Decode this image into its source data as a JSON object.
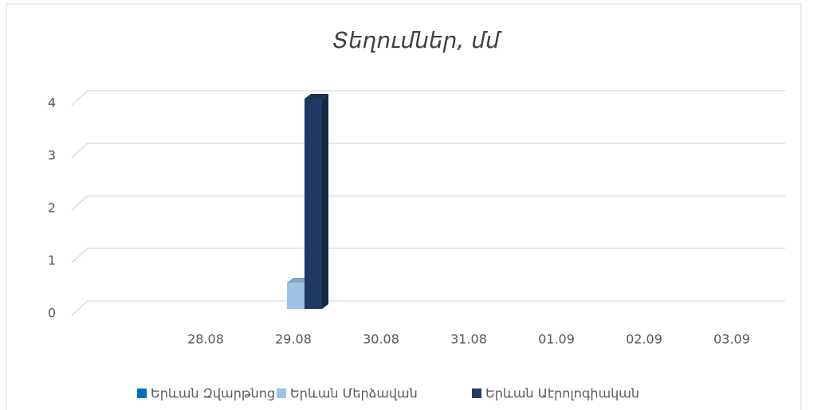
{
  "chart_data": {
    "type": "bar3d",
    "title": "Տեղումներ, մմ",
    "categories": [
      "28.08",
      "29.08",
      "30.08",
      "31.08",
      "01.09",
      "02.09",
      "03.09"
    ],
    "series": [
      {
        "name": "Երևան Զվարթնոց",
        "color": "#0070c0",
        "values": [
          0,
          0,
          0,
          0,
          0,
          0,
          0
        ]
      },
      {
        "name": "Երևան Մերձավան",
        "color": "#9dc3e6",
        "values": [
          0,
          0.5,
          0,
          0,
          0,
          0,
          0
        ]
      },
      {
        "name": "Երևան Աէրոլոգիական",
        "color": "#203864",
        "values": [
          0,
          4,
          0,
          0,
          0,
          0,
          0
        ]
      }
    ],
    "ylim": [
      0,
      4
    ],
    "yticks": [
      0,
      1,
      2,
      3,
      4
    ],
    "grid": true,
    "legend": "bottom"
  }
}
